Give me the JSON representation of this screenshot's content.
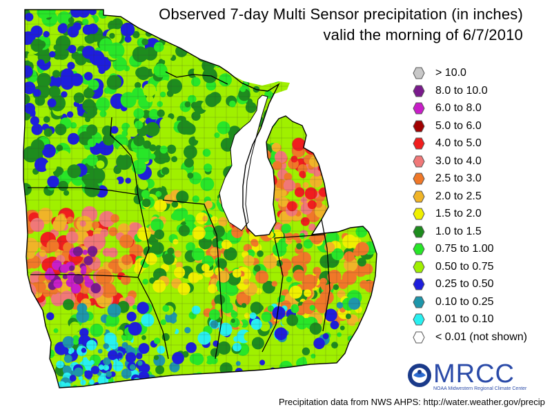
{
  "title_line1": "Observed 7-day Multi Sensor precipitation (in inches)",
  "title_line2": "valid the morning of 6/7/2010",
  "legend": [
    {
      "label": "> 10.0",
      "color": "#c8c8c8"
    },
    {
      "label": "8.0 to 10.0",
      "color": "#7a1a8c"
    },
    {
      "label": "6.0 to 8.0",
      "color": "#c81ec8"
    },
    {
      "label": "5.0 to 6.0",
      "color": "#a00000"
    },
    {
      "label": "4.0 to 5.0",
      "color": "#f01e1e"
    },
    {
      "label": "3.0 to 4.0",
      "color": "#f07878"
    },
    {
      "label": "2.5 to 3.0",
      "color": "#f07828"
    },
    {
      "label": "2.0 to 2.5",
      "color": "#f0b428"
    },
    {
      "label": "1.5 to 2.0",
      "color": "#f0f000"
    },
    {
      "label": "1.0 to 1.5",
      "color": "#1e8c1e"
    },
    {
      "label": "0.75 to 1.00",
      "color": "#28e628"
    },
    {
      "label": "0.50 to 0.75",
      "color": "#a0f000"
    },
    {
      "label": "0.25 to 0.50",
      "color": "#1e1edc"
    },
    {
      "label": "0.10 to 0.25",
      "color": "#1e96aa"
    },
    {
      "label": "0.01 to 0.10",
      "color": "#28f0f0"
    },
    {
      "label": "< 0.01 (not shown)",
      "color": "#ffffff"
    }
  ],
  "logo": {
    "text": "MRCC",
    "subtitle": "NOAA Midwestern Regional Climate Center",
    "seal_icon": "noaa-seal-icon"
  },
  "footer": "Precipitation data from NWS AHPS:  http://water.weather.gov/precip"
}
